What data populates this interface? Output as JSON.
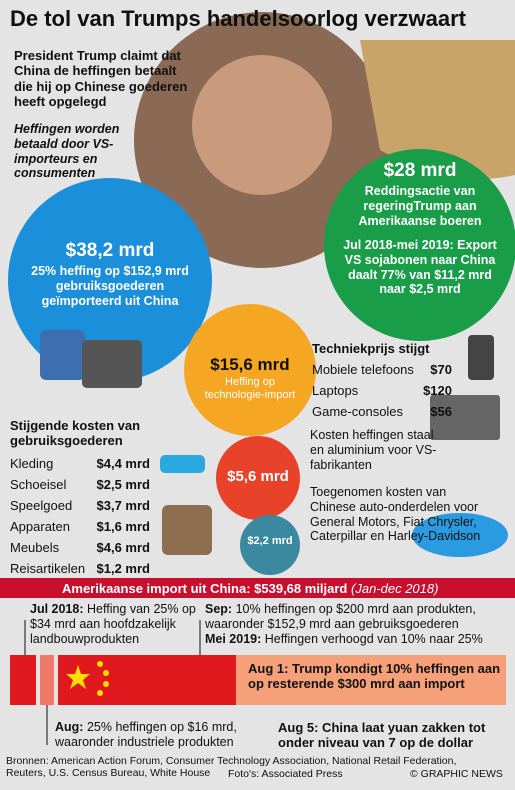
{
  "title": "De tol van Trumps handelsoorlog verzwaart",
  "claim": "President Trump claimt dat China de heffingen betaalt die hij op Chinese goederen heeft opgelegd",
  "reality": "Heffingen worden betaald door VS-importeurs en consumenten",
  "consumer_tariff": {
    "amount": "$38,2 mrd",
    "text": "25% heffing op $152,9 mrd gebruiksgoederen geïmporteerd uit China"
  },
  "farm_bailout": {
    "amount": "$28 mrd",
    "text": "Reddingsactie van regeringTrump aan Amerikaanse boeren",
    "soy": "Jul 2018-mei 2019: Export VS sojabonen naar China daalt 77% van $11,2 mrd naar $2,5 mrd"
  },
  "tech_tariff": {
    "amount": "$15,6 mrd",
    "text": "Heffing op technologie-import"
  },
  "tech_prices": {
    "title": "Techniekprijs stijgt",
    "items": [
      [
        "Mobiele telefoons",
        "$70"
      ],
      [
        "Laptops",
        "$120"
      ],
      [
        "Game-consoles",
        "$56"
      ]
    ]
  },
  "consumer_costs": {
    "title": "Stijgende kosten van gebruiksgoederen",
    "items": [
      [
        "Kleding",
        "$4,4 mrd"
      ],
      [
        "Schoeisel",
        "$2,5 mrd"
      ],
      [
        "Speelgoed",
        "$3,7 mrd"
      ],
      [
        "Apparaten",
        "$1,6 mrd"
      ],
      [
        "Meubels",
        "$4,6 mrd"
      ],
      [
        "Reisartikelen",
        "$1,2 mrd"
      ]
    ]
  },
  "steel": {
    "amount": "$5,6 mrd",
    "text": "Kosten heffingen staal en aluminium voor VS-fabrikanten"
  },
  "auto": {
    "amount": "$2,2 mrd",
    "text": "Toegenomen kosten van Chinese auto-onderdelen voor General Motors, Fiat Chrysler, Caterpillar en Harley-Davidson"
  },
  "imports": {
    "label": "Amerikaanse import uit China: $539,68 miljard",
    "period": "(Jan-dec 2018)"
  },
  "timeline": {
    "jul_2018": {
      "date": "Jul 2018:",
      "text": "Heffing van 25% op $34 mrd aan hoofdzakelijk landbouwprodukten"
    },
    "sep": {
      "date": "Sep:",
      "text": "10% heffingen op $200 mrd aan produkten, waaronder $152,9 mrd aan gebruiksgoederen"
    },
    "mei_2019": {
      "date": "Mei 2019:",
      "text": "Heffingen verhoogd van 10% naar 25%"
    },
    "aug1": "Aug 1: Trump kondigt 10% heffingen aan op resterende $300 mrd aan import",
    "aug": {
      "date": "Aug:",
      "text": "25% heffingen op $16 mrd, waaronder industriele produkten"
    },
    "aug5": "Aug 5: China laat yuan zakken tot onder niveau van 7 op de dollar"
  },
  "sources": "Bronnen: American Action Forum, Consumer Technology Association, National Retail Federation, Reuters, U.S. Census Bureau, White House",
  "photos": "Foto's: Associated Press",
  "credit": "© GRAPHIC NEWS"
}
